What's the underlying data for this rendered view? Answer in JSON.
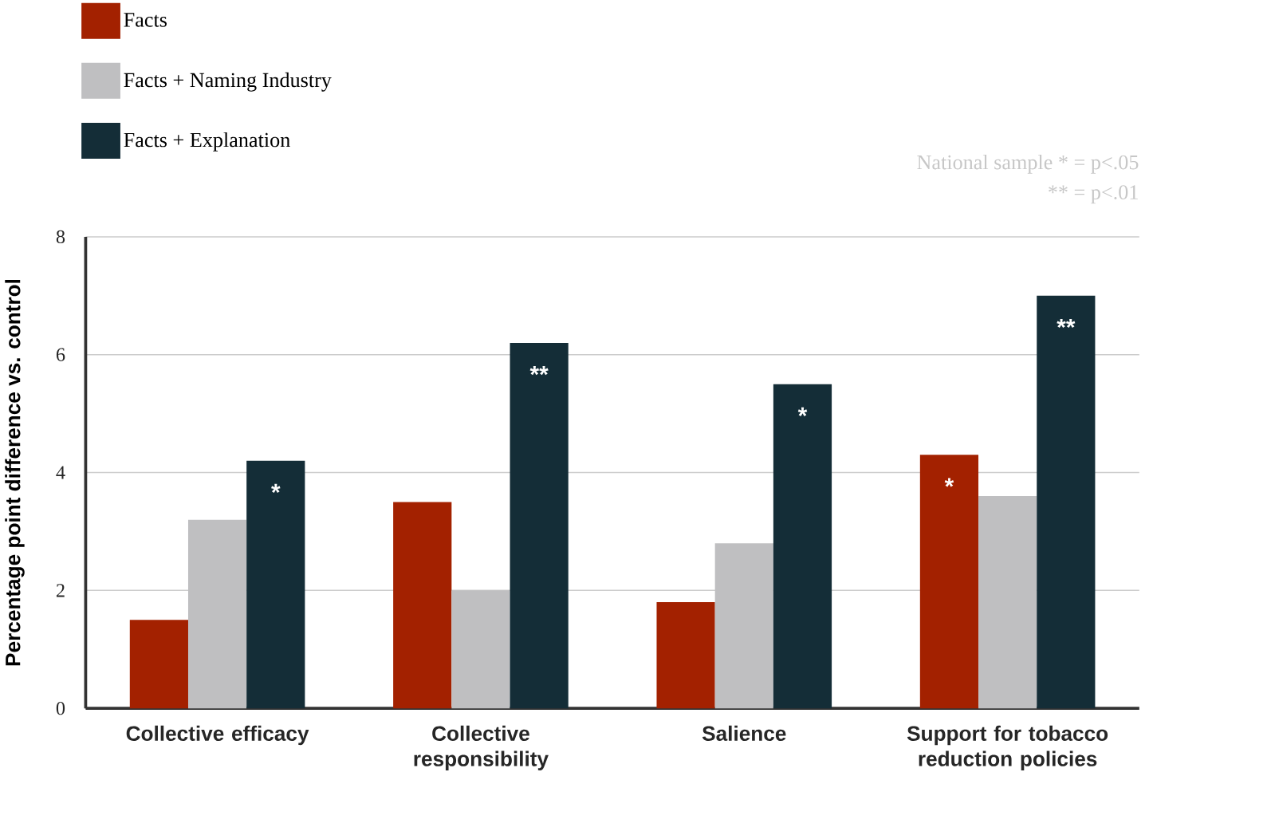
{
  "chart_data": {
    "type": "bar",
    "ylabel": "Percentage point difference vs. control",
    "categories": [
      "Collective efficacy",
      "Collective responsibility",
      "Salience",
      "Support for tobacco reduction policies"
    ],
    "series": [
      {
        "name": "Facts",
        "color": "#a32100",
        "values": [
          1.5,
          3.5,
          1.8,
          4.3
        ],
        "value_labels": [
          null,
          null,
          null,
          "*"
        ]
      },
      {
        "name": "Facts + Naming Industry",
        "color": "#bfbfc1",
        "values": [
          3.2,
          2.0,
          2.8,
          3.6
        ]
      },
      {
        "name": "Facts + Explanation",
        "color": "#142d37",
        "values": [
          4.2,
          6.2,
          5.5,
          7.0
        ],
        "value_labels": [
          "*",
          "**",
          "*",
          "**"
        ]
      }
    ],
    "ylim": [
      0,
      8
    ],
    "yticks": [
      0,
      2,
      4,
      6,
      8
    ],
    "grid": "y",
    "legend": "top left",
    "annotations": [
      "National sample * = p<.05",
      "** = p<.01"
    ]
  }
}
